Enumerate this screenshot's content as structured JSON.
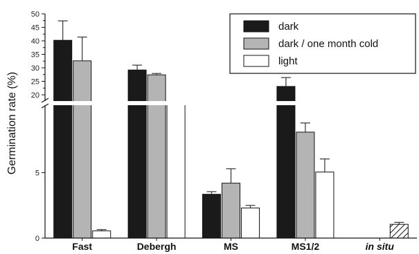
{
  "chart_data": {
    "type": "bar",
    "title": "",
    "xlabel": "",
    "ylabel": "Germination rate (%)",
    "axis_break": true,
    "ylim_lower": [
      0,
      10
    ],
    "ylim_upper": [
      20,
      50
    ],
    "yticks_lower": [
      0,
      5
    ],
    "yticks_upper": [
      20,
      25,
      30,
      35,
      40,
      45,
      50
    ],
    "grid": false,
    "legend_position": "top-right",
    "categories": [
      "Fast",
      "Debergh",
      "MS",
      "MS1/2",
      "in situ"
    ],
    "series": [
      {
        "name": "dark",
        "color": "#1a1a1a",
        "values": [
          40.2,
          29.2,
          3.35,
          23.1,
          null
        ],
        "errors": [
          7.2,
          1.8,
          0.2,
          3.3,
          null
        ]
      },
      {
        "name": "dark / one month cold",
        "color": "#b4b4b4",
        "values": [
          32.6,
          27.4,
          4.2,
          8.1,
          null
        ],
        "errors": [
          8.8,
          0.5,
          1.1,
          0.7,
          null
        ]
      },
      {
        "name": "light",
        "color": "#ffffff",
        "values": [
          0.55,
          19.0,
          2.3,
          5.05,
          1.05
        ],
        "errors": [
          0.1,
          null,
          0.2,
          1.0,
          0.15
        ]
      }
    ],
    "hatched": [
      {
        "series": "light",
        "category": "in situ"
      }
    ]
  }
}
